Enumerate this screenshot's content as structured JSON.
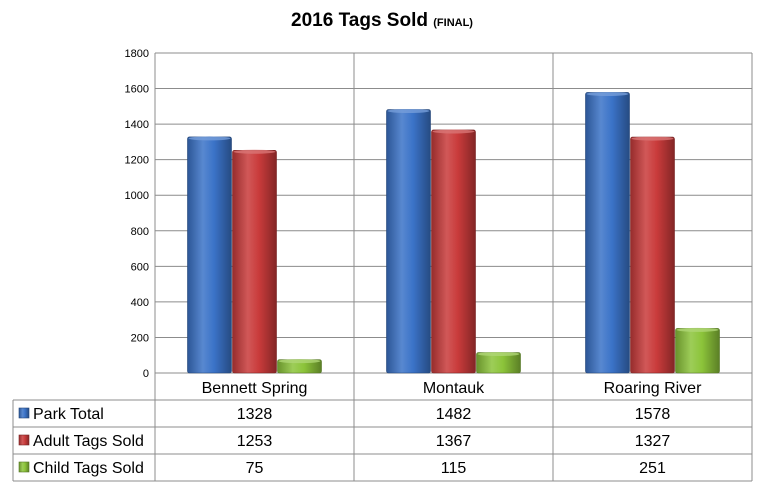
{
  "chart_data": {
    "type": "bar",
    "title": "2016 Tags Sold",
    "subtitle": "(FINAL)",
    "categories": [
      "Bennett Spring",
      "Montauk",
      "Roaring River"
    ],
    "series": [
      {
        "name": "Park Total",
        "values": [
          1328,
          1482,
          1578
        ],
        "color": "#3b73c8"
      },
      {
        "name": "Adult Tags Sold",
        "values": [
          1253,
          1367,
          1327
        ],
        "color": "#c93b3b"
      },
      {
        "name": "Child Tags Sold",
        "values": [
          75,
          115,
          251
        ],
        "color": "#8cc43a"
      }
    ],
    "yticks": [
      "0",
      "200",
      "400",
      "600",
      "800",
      "1000",
      "1200",
      "1400",
      "1600",
      "1800"
    ],
    "ylim": [
      0,
      1800
    ],
    "grid": true,
    "legend": "data-table"
  }
}
